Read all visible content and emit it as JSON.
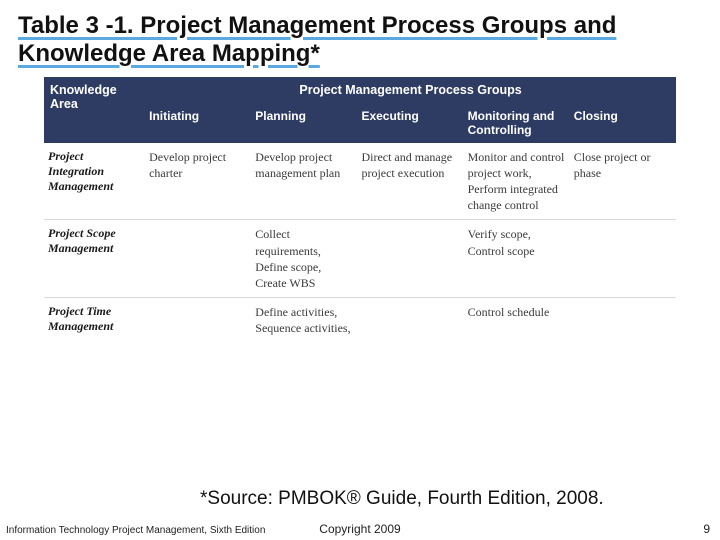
{
  "title": "Table 3 -1. Project Management Process Groups and Knowledge Area Mapping*",
  "table": {
    "ka_header": "Knowledge Area",
    "super_header": "Project Management Process Groups",
    "columns": [
      "Initiating",
      "Planning",
      "Executing",
      "Monitoring and Controlling",
      "Closing"
    ],
    "rows": [
      {
        "ka": "Project Integration Management",
        "cells": [
          "Develop project charter",
          "Develop project management plan",
          "Direct and manage project execution",
          "Monitor and control project work, Perform integrated change control",
          "Close project or phase"
        ]
      },
      {
        "ka": "Project Scope Management",
        "cells": [
          "",
          "Collect requirements, Define scope, Create WBS",
          "",
          "Verify scope, Control scope",
          ""
        ]
      },
      {
        "ka": "Project Time Management",
        "cells": [
          "",
          "Define activities, Sequence activities,",
          "",
          "Control schedule",
          ""
        ]
      }
    ]
  },
  "source": "*Source: PMBOK® Guide, Fourth Edition, 2008.",
  "footer_left": "Information Technology Project Management, Sixth Edition",
  "footer_center": "Copyright 2009",
  "page_number": "9"
}
